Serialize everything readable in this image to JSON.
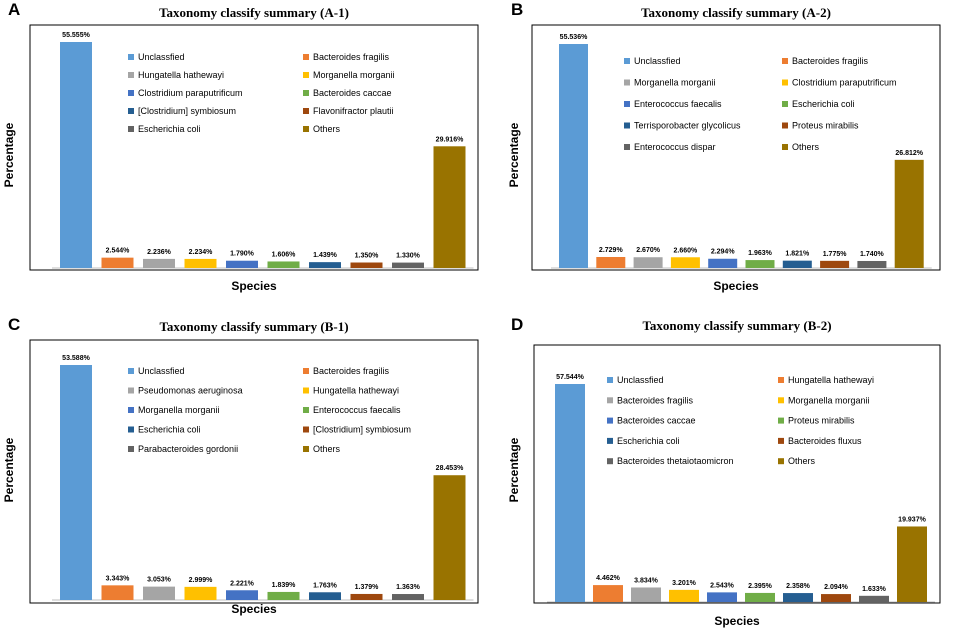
{
  "chart_data": [
    {
      "panel": "A",
      "type": "bar",
      "title": "Taxonomy classify summary (A-1)",
      "xlabel": "Species",
      "ylabel": "Percentage",
      "ylim": [
        0,
        55.555
      ],
      "categories": [
        "Unclassfied",
        "Bacteroides fragilis",
        "Hungatella hathewayi",
        "Morganella morganii",
        "Clostridium paraputrificum",
        "Bacteroides caccae",
        "[Clostridium] symbiosum",
        "Flavonifractor plautii",
        "Escherichia coli",
        "Others"
      ],
      "values": [
        55.555,
        2.544,
        2.236,
        2.234,
        1.79,
        1.606,
        1.439,
        1.35,
        1.33,
        29.916
      ],
      "value_labels": [
        "55.555%",
        "2.544%",
        "2.236%",
        "2.234%",
        "1.790%",
        "1.606%",
        "1.439%",
        "1.350%",
        "1.330%",
        "29.916%"
      ],
      "colors": [
        "#5b9bd5",
        "#ed7d31",
        "#a5a5a5",
        "#ffc000",
        "#4472c4",
        "#70ad47",
        "#255e91",
        "#9e480e",
        "#636363",
        "#997300"
      ]
    },
    {
      "panel": "B",
      "type": "bar",
      "title": "Taxonomy classify summary (A-2)",
      "xlabel": "Species",
      "ylabel": "Percentage",
      "ylim": [
        0,
        55.536
      ],
      "categories": [
        "Unclassfied",
        "Bacteroides fragilis",
        "Morganella morganii",
        "Clostridium paraputrificum",
        "Enterococcus faecalis",
        "Escherichia coli",
        "Terrisporobacter glycolicus",
        "Proteus mirabilis",
        "Enterococcus dispar",
        "Others"
      ],
      "values": [
        55.536,
        2.729,
        2.67,
        2.66,
        2.294,
        1.963,
        1.821,
        1.775,
        1.74,
        26.812
      ],
      "value_labels": [
        "55.536%",
        "2.729%",
        "2.670%",
        "2.660%",
        "2.294%",
        "1.963%",
        "1.821%",
        "1.775%",
        "1.740%",
        "26.812%"
      ],
      "colors": [
        "#5b9bd5",
        "#ed7d31",
        "#a5a5a5",
        "#ffc000",
        "#4472c4",
        "#70ad47",
        "#255e91",
        "#9e480e",
        "#636363",
        "#997300"
      ]
    },
    {
      "panel": "C",
      "type": "bar",
      "title": "Taxonomy classify summary (B-1)",
      "xlabel": "Species",
      "ylabel": "Percentage",
      "ylim": [
        0,
        53.588
      ],
      "categories": [
        "Unclassfied",
        "Bacteroides fragilis",
        "Pseudomonas aeruginosa",
        "Hungatella hathewayi",
        "Morganella morganii",
        "Enterococcus faecalis",
        "Escherichia coli",
        "[Clostridium] symbiosum",
        "Parabacteroides gordonii",
        "Others"
      ],
      "values": [
        53.588,
        3.343,
        3.053,
        2.999,
        2.221,
        1.839,
        1.763,
        1.379,
        1.363,
        28.453
      ],
      "value_labels": [
        "53.588%",
        "3.343%",
        "3.053%",
        "2.999%",
        "2.221%",
        "1.839%",
        "1.763%",
        "1.379%",
        "1.363%",
        "28.453%"
      ],
      "colors": [
        "#5b9bd5",
        "#ed7d31",
        "#a5a5a5",
        "#ffc000",
        "#4472c4",
        "#70ad47",
        "#255e91",
        "#9e480e",
        "#636363",
        "#997300"
      ]
    },
    {
      "panel": "D",
      "type": "bar",
      "title": "Taxonomy classify summary (B-2)",
      "xlabel": "Species",
      "ylabel": "Percentage",
      "ylim": [
        0,
        57.544
      ],
      "categories": [
        "Unclassfied",
        "Hungatella hathewayi",
        "Bacteroides fragilis",
        "Morganella morganii",
        "Bacteroides caccae",
        "Proteus mirabilis",
        "Escherichia coli",
        "Bacteroides fluxus",
        "Bacteroides thetaiotaomicron",
        "Others"
      ],
      "values": [
        57.544,
        4.462,
        3.834,
        3.201,
        2.543,
        2.395,
        2.358,
        2.094,
        1.633,
        19.937
      ],
      "value_labels": [
        "57.544%",
        "4.462%",
        "3.834%",
        "3.201%",
        "2.543%",
        "2.395%",
        "2.358%",
        "2.094%",
        "1.633%",
        "19.937%"
      ],
      "colors": [
        "#5b9bd5",
        "#ed7d31",
        "#a5a5a5",
        "#ffc000",
        "#4472c4",
        "#70ad47",
        "#255e91",
        "#9e480e",
        "#636363",
        "#997300"
      ]
    }
  ]
}
